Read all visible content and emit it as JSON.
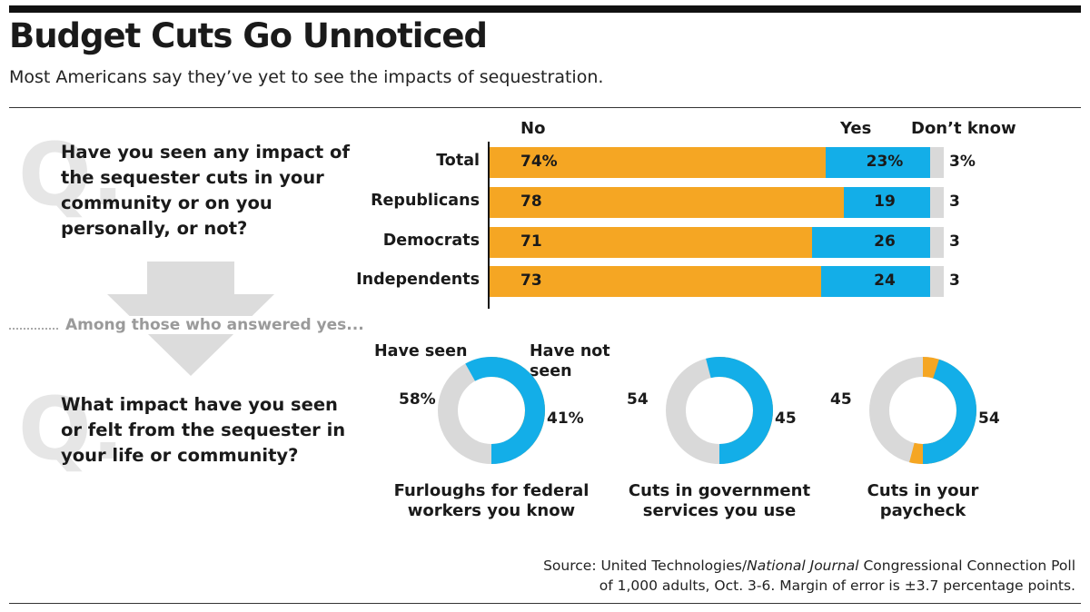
{
  "header": {
    "title": "Budget Cuts Go Unnoticed",
    "subtitle": "Most Americans say they’ve yet to see the impacts of sequestration."
  },
  "questions": {
    "q_mark": "Q.",
    "q1": "Have you seen any impact of the sequester cuts in your community or on you personally, or not?",
    "among": "Among those who answered yes...",
    "q2": "What impact have you seen or felt from the sequester in your life or community?"
  },
  "chart_data": [
    {
      "type": "bar",
      "orientation": "horizontal-stacked",
      "legend": [
        "No",
        "Yes",
        "Don’t know"
      ],
      "categories": [
        "Total",
        "Republicans",
        "Democrats",
        "Independents"
      ],
      "series": [
        {
          "name": "No",
          "values": [
            74,
            78,
            71,
            73
          ],
          "labels": [
            "74%",
            "78",
            "71",
            "73"
          ],
          "color": "#f5a623"
        },
        {
          "name": "Yes",
          "values": [
            23,
            19,
            26,
            24
          ],
          "labels": [
            "23%",
            "19",
            "26",
            "24"
          ],
          "color": "#13aee8"
        },
        {
          "name": "Don’t know",
          "values": [
            3,
            3,
            3,
            3
          ],
          "labels": [
            "3%",
            "3",
            "3",
            "3"
          ],
          "color": "#d9d9d9"
        }
      ],
      "xlim": [
        0,
        100
      ]
    },
    {
      "type": "pie",
      "variant": "donut",
      "slice_names": [
        "Have seen",
        "Have not seen"
      ],
      "colors": [
        "#13aee8",
        "#f5a623"
      ],
      "donuts": [
        {
          "caption": "Furloughs for federal workers you know",
          "values": [
            58,
            41
          ],
          "labels": [
            "58%",
            "41%"
          ]
        },
        {
          "caption": "Cuts in government services you use",
          "values": [
            54,
            45
          ],
          "labels": [
            "54",
            "45"
          ]
        },
        {
          "caption": "Cuts in your paycheck",
          "values": [
            45,
            54
          ],
          "labels": [
            "45",
            "54"
          ]
        }
      ]
    }
  ],
  "source": {
    "line1_prefix": "Source: United Technologies/",
    "line1_italic": "National Journal",
    "line1_suffix": " Congressional Connection Poll",
    "line2": "of 1,000 adults, Oct. 3-6. Margin of error is ±3.7 percentage points."
  }
}
